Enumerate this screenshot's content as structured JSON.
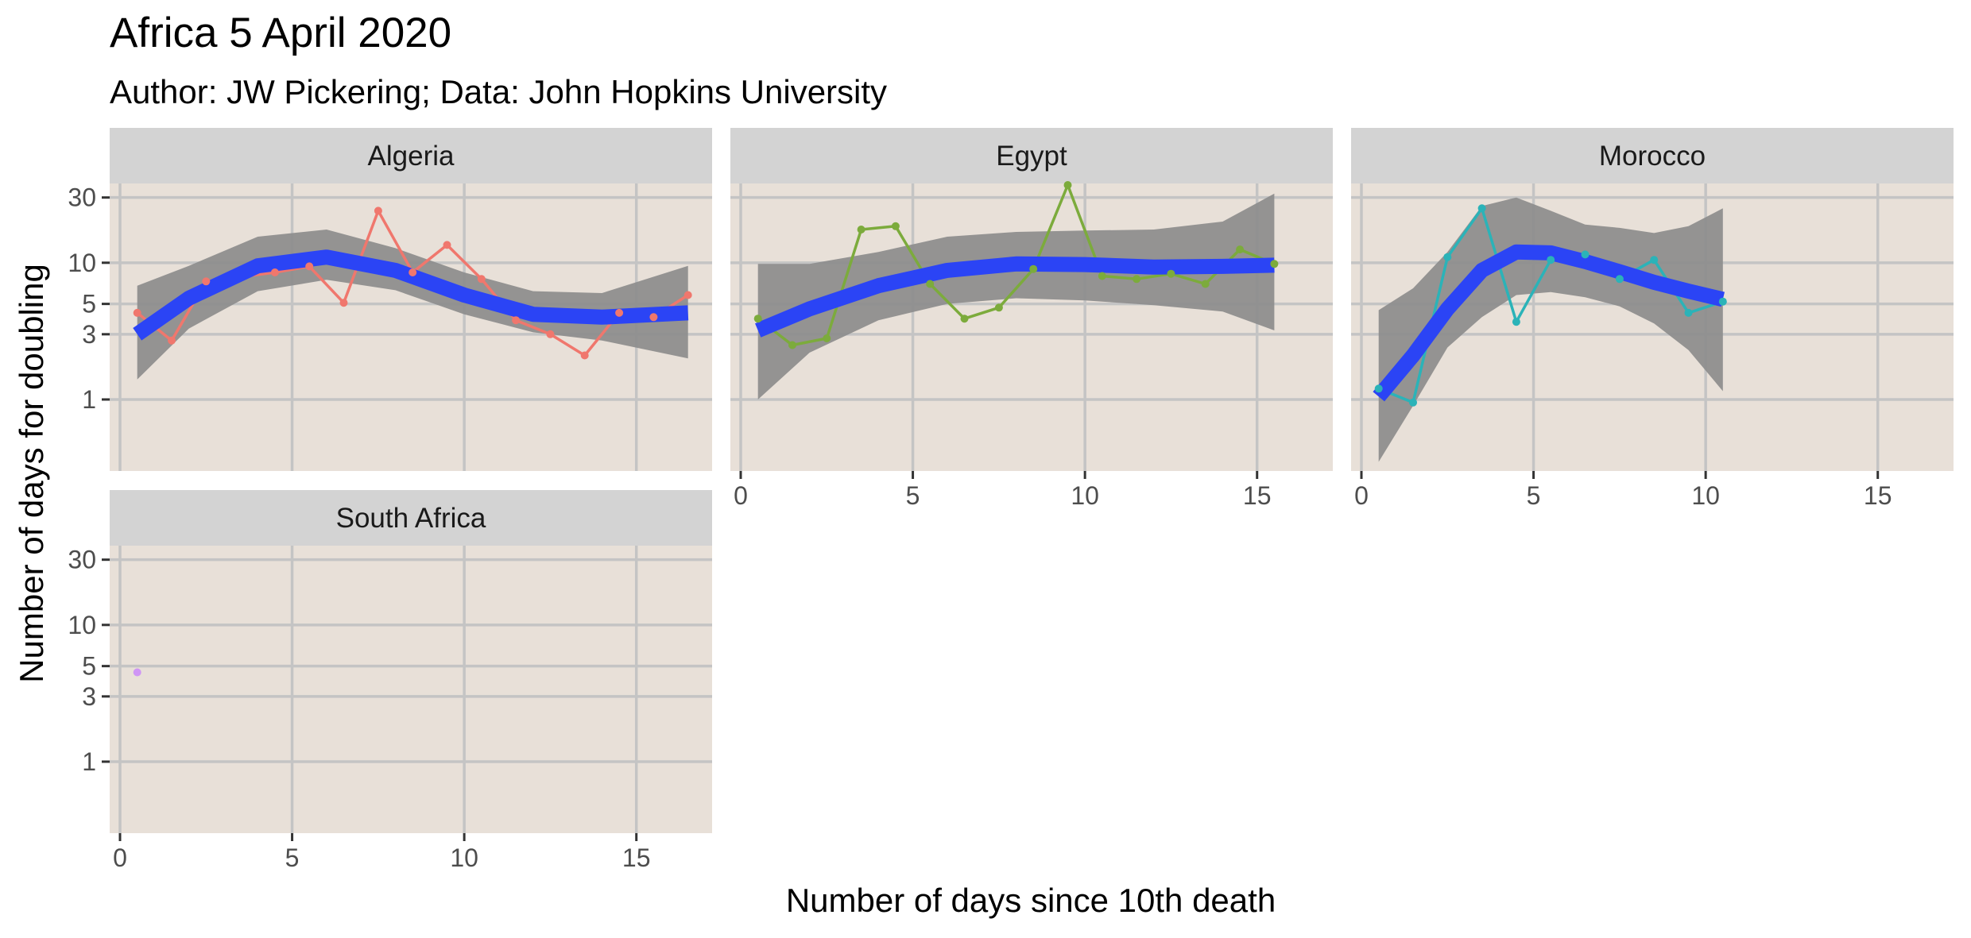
{
  "chart_data": {
    "type": "line",
    "title": "Africa 5 April 2020",
    "subtitle": "Author: JW Pickering; Data: John Hopkins University",
    "xlabel": "Number of days since 10th death",
    "ylabel": "Number of days for doubling",
    "y_scale": "log",
    "x_ticks": [
      0,
      5,
      10,
      15
    ],
    "y_ticks": [
      1,
      3,
      5,
      10,
      30
    ],
    "x_range": [
      -0.3,
      17.2
    ],
    "y_range": [
      0.3,
      38
    ],
    "grid": true,
    "legend": "none",
    "panel_background": "#e8e0d8",
    "strip_background": "#d3d3d3",
    "grid_color": "#c4c4c4",
    "smooth_color": "#2b44f5",
    "ribbon_color": "#8c8c8c",
    "panels": [
      {
        "name": "Algeria",
        "color": "#f0776d",
        "x": [
          0.5,
          1.5,
          2.5,
          4.5,
          5.5,
          6.5,
          7.5,
          8.5,
          9.5,
          10.5,
          11.5,
          12.5,
          13.5,
          14.5,
          15.5,
          16.5
        ],
        "y": [
          4.3,
          2.7,
          7.3,
          8.5,
          9.4,
          5.1,
          24,
          8.5,
          13.5,
          7.6,
          3.8,
          3.0,
          2.1,
          4.3,
          4.0,
          5.8
        ],
        "smooth_x": [
          0.5,
          2,
          4,
          6,
          8,
          10,
          12,
          14,
          16.5
        ],
        "smooth_y": [
          3.0,
          5.5,
          9.5,
          11.0,
          8.8,
          5.8,
          4.2,
          4.0,
          4.3
        ],
        "ribbon_lower": [
          1.4,
          3.3,
          6.2,
          7.5,
          6.3,
          4.2,
          3.1,
          2.7,
          2.0
        ],
        "ribbon_upper": [
          6.8,
          9.5,
          15.5,
          17.5,
          12.8,
          8.5,
          6.2,
          6.0,
          9.5
        ]
      },
      {
        "name": "Egypt",
        "color": "#7cab3c",
        "x": [
          0.5,
          1.5,
          2.5,
          3.5,
          4.5,
          5.5,
          6.5,
          7.5,
          8.5,
          9.5,
          10.5,
          11.5,
          12.5,
          13.5,
          14.5,
          15.5
        ],
        "y": [
          3.9,
          2.5,
          2.8,
          17.5,
          18.5,
          7.0,
          3.9,
          4.7,
          9.0,
          37,
          8.0,
          7.6,
          8.3,
          7.0,
          12.5,
          9.8
        ],
        "smooth_x": [
          0.5,
          2,
          4,
          6,
          8,
          10,
          12,
          14,
          15.5
        ],
        "smooth_y": [
          3.2,
          4.6,
          6.8,
          8.8,
          9.8,
          9.7,
          9.3,
          9.4,
          9.6
        ],
        "ribbon_lower": [
          1.0,
          2.2,
          3.8,
          5.0,
          5.5,
          5.3,
          4.9,
          4.4,
          3.2
        ],
        "ribbon_upper": [
          9.8,
          9.8,
          12.0,
          15.5,
          16.8,
          17.2,
          17.5,
          20.0,
          32.0
        ]
      },
      {
        "name": "Morocco",
        "color": "#2bb3b8",
        "x": [
          0.5,
          1.5,
          2.5,
          3.5,
          4.5,
          5.5,
          6.5,
          7.5,
          8.5,
          9.5,
          10.5
        ],
        "y": [
          1.2,
          0.95,
          11.0,
          25,
          3.7,
          10.5,
          11.5,
          7.6,
          10.5,
          4.3,
          5.2
        ],
        "smooth_x": [
          0.5,
          1.5,
          2.5,
          3.5,
          4.5,
          5.5,
          6.5,
          7.5,
          8.5,
          9.5,
          10.5
        ],
        "smooth_y": [
          1.05,
          2.1,
          4.6,
          8.8,
          12.0,
          11.8,
          10.2,
          8.6,
          7.2,
          6.2,
          5.4
        ],
        "ribbon_lower": [
          0.35,
          0.9,
          2.4,
          4.0,
          5.8,
          6.1,
          5.6,
          4.8,
          3.6,
          2.3,
          1.15
        ],
        "ribbon_upper": [
          4.5,
          6.5,
          12.0,
          26.0,
          30.0,
          24.0,
          19.0,
          18.0,
          16.5,
          18.5,
          25.0
        ]
      },
      {
        "name": "South Africa",
        "color": "#c77cff",
        "x": [
          0.5
        ],
        "y": [
          4.5
        ]
      }
    ]
  }
}
